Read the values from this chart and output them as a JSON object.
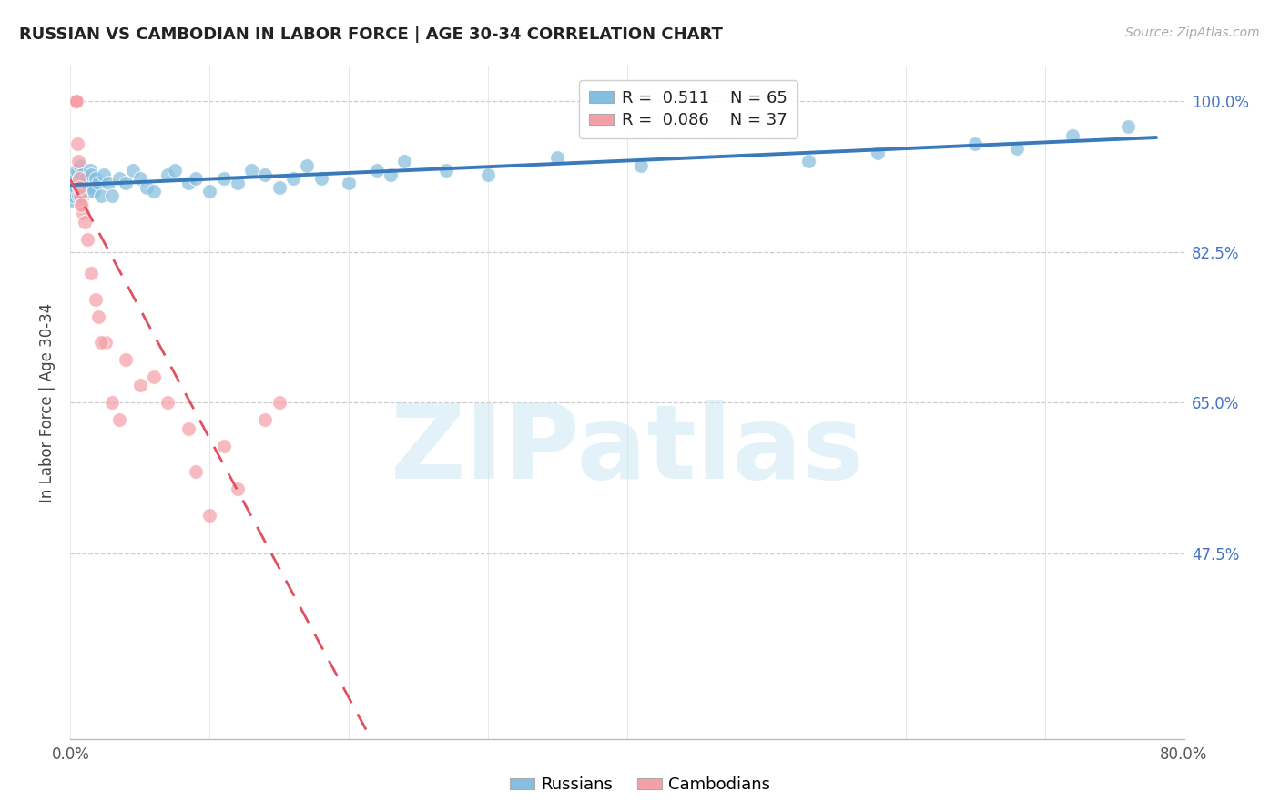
{
  "title": "RUSSIAN VS CAMBODIAN IN LABOR FORCE | AGE 30-34 CORRELATION CHART",
  "source": "Source: ZipAtlas.com",
  "xmin": 0.0,
  "xmax": 80.0,
  "ymin": 26.0,
  "ymax": 104.0,
  "ylabel": "In Labor Force | Age 30-34",
  "russian_R": 0.511,
  "russian_N": 65,
  "cambodian_R": 0.086,
  "cambodian_N": 37,
  "blue_color": "#85bfdf",
  "blue_line": "#3a7aba",
  "pink_color": "#f5a0a8",
  "pink_line": "#e05060",
  "ytick_vals": [
    100.0,
    82.5,
    65.0,
    47.5
  ],
  "ytick_labels": [
    "100.0%",
    "82.5%",
    "65.0%",
    "47.5%"
  ],
  "xtick_vals": [
    0.0,
    10.0,
    20.0,
    30.0,
    40.0,
    50.0,
    60.0,
    70.0,
    80.0
  ],
  "xtick_labels": [
    "0.0%",
    "",
    "",
    "",
    "",
    "",
    "",
    "",
    "80.0%"
  ],
  "russian_x": [
    0.1,
    0.15,
    0.2,
    0.25,
    0.3,
    0.35,
    0.4,
    0.45,
    0.5,
    0.55,
    0.6,
    0.65,
    0.7,
    0.75,
    0.8,
    0.85,
    0.9,
    0.95,
    1.0,
    1.1,
    1.2,
    1.3,
    1.4,
    1.5,
    1.6,
    1.7,
    1.8,
    2.0,
    2.2,
    2.4,
    2.7,
    3.0,
    3.5,
    4.0,
    4.5,
    5.0,
    5.5,
    6.0,
    7.0,
    7.5,
    8.5,
    9.0,
    10.0,
    11.0,
    12.0,
    13.0,
    14.0,
    15.0,
    16.0,
    17.0,
    18.0,
    20.0,
    22.0,
    23.0,
    24.0,
    27.0,
    30.0,
    35.0,
    41.0,
    53.0,
    58.0,
    65.0,
    68.0,
    72.0,
    76.0
  ],
  "russian_y": [
    88.5,
    89.0,
    90.0,
    89.5,
    91.0,
    90.0,
    91.5,
    92.0,
    90.5,
    89.0,
    91.0,
    90.0,
    92.5,
    91.0,
    90.0,
    91.5,
    89.0,
    90.0,
    90.5,
    91.0,
    89.5,
    90.0,
    92.0,
    91.5,
    90.0,
    89.5,
    91.0,
    90.5,
    89.0,
    91.5,
    90.5,
    89.0,
    91.0,
    90.5,
    92.0,
    91.0,
    90.0,
    89.5,
    91.5,
    92.0,
    90.5,
    91.0,
    89.5,
    91.0,
    90.5,
    92.0,
    91.5,
    90.0,
    91.0,
    92.5,
    91.0,
    90.5,
    92.0,
    91.5,
    93.0,
    92.0,
    91.5,
    93.5,
    92.5,
    93.0,
    94.0,
    95.0,
    94.5,
    96.0,
    97.0
  ],
  "cambodian_x": [
    0.05,
    0.1,
    0.15,
    0.2,
    0.25,
    0.3,
    0.35,
    0.4,
    0.45,
    0.5,
    0.6,
    0.7,
    0.8,
    0.9,
    1.0,
    1.2,
    1.5,
    2.0,
    2.5,
    3.0,
    4.0,
    5.0,
    6.0,
    7.0,
    8.5,
    10.0,
    12.0,
    14.0,
    15.0,
    2.2,
    0.55,
    0.65,
    0.75,
    1.8,
    3.5,
    9.0,
    11.0
  ],
  "cambodian_y": [
    100.0,
    100.0,
    100.0,
    100.0,
    100.0,
    100.0,
    100.0,
    100.0,
    100.0,
    95.0,
    91.0,
    89.0,
    88.0,
    87.0,
    86.0,
    84.0,
    80.0,
    75.0,
    72.0,
    65.0,
    70.0,
    67.0,
    68.0,
    65.0,
    62.0,
    52.0,
    55.0,
    63.0,
    65.0,
    72.0,
    93.0,
    90.0,
    88.0,
    77.0,
    63.0,
    57.0,
    60.0
  ]
}
